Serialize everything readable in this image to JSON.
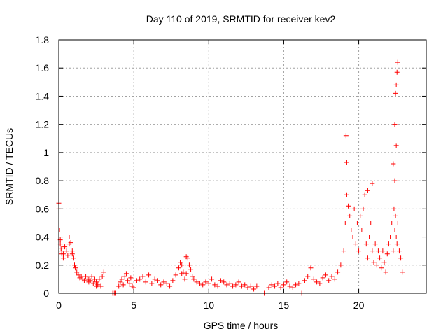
{
  "chart_data": {
    "type": "scatter",
    "title": "Day 110 of 2019, SRMTID for receiver kev2",
    "xlabel": "GPS time / hours",
    "ylabel": "SRMTID / TECUs",
    "xlim": [
      0,
      24.5
    ],
    "ylim": [
      0,
      1.8
    ],
    "xticks": [
      0,
      5,
      10,
      15,
      20
    ],
    "xtick_labels": [
      "0",
      "5",
      "10",
      "15",
      "20"
    ],
    "yticks": [
      0,
      0.2,
      0.4,
      0.6,
      0.8,
      1,
      1.2,
      1.4,
      1.6,
      1.8
    ],
    "ytick_labels": [
      "0",
      "0.2",
      "0.4",
      "0.6",
      "0.8",
      "1",
      "1.2",
      "1.4",
      "1.6",
      "1.8"
    ],
    "grid": true,
    "marker": "+",
    "marker_color": "#ff0000",
    "series": [
      {
        "name": "SRMTID",
        "x": [
          0.0,
          0.05,
          0.1,
          0.15,
          0.2,
          0.3,
          0.4,
          0.5,
          0.6,
          0.7,
          0.8,
          0.9,
          1.0,
          1.05,
          1.1,
          1.2,
          1.3,
          1.4,
          1.5,
          1.6,
          1.7,
          1.8,
          1.9,
          2.0,
          2.1,
          2.2,
          2.3,
          2.4,
          2.5,
          2.6,
          2.7,
          2.8,
          2.9,
          3.0,
          3.6,
          3.7,
          3.8,
          4.0,
          4.1,
          4.2,
          4.3,
          4.4,
          4.5,
          4.6,
          4.7,
          4.8,
          4.9,
          5.0,
          5.2,
          5.4,
          5.6,
          5.8,
          6.0,
          6.2,
          6.4,
          6.6,
          6.8,
          7.0,
          7.2,
          7.4,
          7.6,
          7.8,
          8.0,
          8.1,
          8.2,
          8.3,
          8.4,
          8.5,
          8.6,
          8.7,
          8.8,
          8.9,
          9.0,
          9.2,
          9.4,
          9.6,
          9.8,
          10.0,
          10.2,
          10.4,
          10.6,
          10.8,
          11.0,
          11.2,
          11.4,
          11.6,
          11.8,
          12.0,
          12.2,
          12.4,
          12.6,
          12.8,
          13.0,
          13.2,
          13.7,
          14.0,
          14.2,
          14.4,
          14.6,
          14.8,
          15.0,
          15.2,
          15.4,
          15.6,
          15.8,
          16.0,
          16.2,
          16.4,
          16.6,
          16.8,
          17.0,
          17.2,
          17.4,
          17.6,
          17.8,
          18.0,
          18.2,
          18.4,
          18.6,
          18.8,
          19.0,
          19.1,
          19.2,
          19.3,
          19.4,
          19.5,
          19.6,
          19.7,
          19.8,
          19.9,
          20.0,
          20.1,
          20.2,
          20.3,
          20.4,
          20.5,
          20.6,
          20.7,
          20.8,
          20.9,
          21.0,
          21.1,
          21.2,
          21.3,
          21.4,
          21.5,
          21.6,
          21.7,
          21.8,
          21.9,
          22.0,
          22.1,
          22.2,
          22.3,
          22.35,
          22.4,
          22.45,
          22.5,
          22.55,
          22.6,
          22.7,
          22.8,
          22.9,
          0.0,
          0.1,
          0.2,
          0.3,
          0.5,
          0.7,
          0.9,
          2.0,
          2.5,
          8.2,
          8.5,
          19.15,
          19.2,
          20.6,
          20.9,
          22.3,
          22.4,
          22.45,
          22.5,
          22.55,
          22.6,
          22.4,
          22.5
        ],
        "y": [
          0.64,
          0.45,
          0.38,
          0.32,
          0.3,
          0.28,
          0.33,
          0.3,
          0.27,
          0.4,
          0.36,
          0.3,
          0.25,
          0.2,
          0.18,
          0.15,
          0.13,
          0.11,
          0.12,
          0.1,
          0.09,
          0.12,
          0.1,
          0.08,
          0.09,
          0.12,
          0.07,
          0.1,
          0.08,
          0.06,
          0.1,
          0.05,
          0.12,
          0.15,
          0.0,
          0.0,
          0.0,
          0.05,
          0.08,
          0.1,
          0.06,
          0.12,
          0.14,
          0.09,
          0.07,
          0.11,
          0.05,
          0.04,
          0.09,
          0.1,
          0.12,
          0.08,
          0.13,
          0.07,
          0.1,
          0.09,
          0.06,
          0.08,
          0.07,
          0.05,
          0.09,
          0.13,
          0.18,
          0.22,
          0.2,
          0.15,
          0.1,
          0.14,
          0.25,
          0.2,
          0.17,
          0.12,
          0.1,
          0.08,
          0.07,
          0.06,
          0.08,
          0.07,
          0.1,
          0.06,
          0.05,
          0.09,
          0.08,
          0.06,
          0.07,
          0.05,
          0.06,
          0.08,
          0.05,
          0.06,
          0.04,
          0.05,
          0.03,
          0.05,
          0.0,
          0.04,
          0.06,
          0.05,
          0.07,
          0.04,
          0.06,
          0.08,
          0.05,
          0.04,
          0.06,
          0.07,
          0.0,
          0.09,
          0.12,
          0.18,
          0.1,
          0.08,
          0.07,
          0.11,
          0.13,
          0.09,
          0.12,
          0.1,
          0.15,
          0.2,
          0.3,
          0.5,
          0.7,
          0.62,
          0.55,
          0.45,
          0.4,
          0.6,
          0.35,
          0.5,
          0.3,
          0.55,
          0.45,
          0.6,
          0.7,
          0.35,
          0.25,
          0.4,
          0.5,
          0.3,
          0.22,
          0.35,
          0.2,
          0.3,
          0.25,
          0.18,
          0.3,
          0.22,
          0.15,
          0.28,
          0.35,
          0.4,
          0.5,
          0.3,
          0.6,
          0.45,
          0.55,
          0.4,
          0.35,
          0.5,
          0.3,
          0.25,
          0.15,
          0.6,
          0.35,
          0.28,
          0.25,
          0.3,
          0.35,
          0.28,
          0.1,
          0.05,
          0.14,
          0.26,
          1.12,
          0.93,
          0.73,
          0.78,
          0.92,
          1.2,
          1.42,
          1.48,
          1.57,
          1.64,
          0.8,
          1.05
        ]
      }
    ]
  }
}
